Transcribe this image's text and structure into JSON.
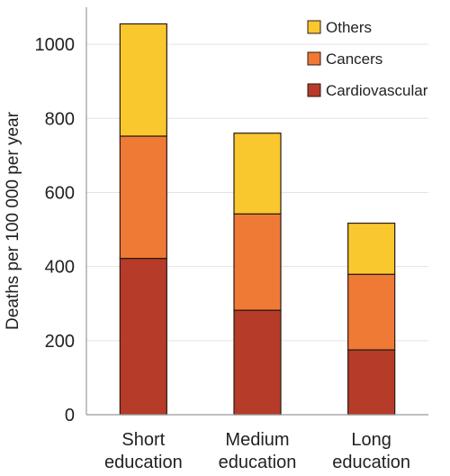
{
  "chart_data": {
    "type": "bar",
    "stacked": true,
    "categories": [
      [
        "Short",
        "education"
      ],
      [
        "Medium",
        "education"
      ],
      [
        "Long",
        "education"
      ]
    ],
    "series": [
      {
        "name": "Cardiovascular",
        "color": "#b63b28",
        "values": [
          422,
          282,
          175
        ]
      },
      {
        "name": "Cancers",
        "color": "#ef7a35",
        "values": [
          330,
          260,
          204
        ]
      },
      {
        "name": "Others",
        "color": "#f9c82e",
        "values": [
          303,
          218,
          138
        ]
      }
    ],
    "ylabel": "Deaths per 100 000 per year",
    "xlabel": "",
    "ylim": [
      0,
      1100
    ],
    "yticks": [
      0,
      200,
      400,
      600,
      800,
      1000
    ],
    "grid": true,
    "legend": {
      "position": "top-right",
      "order": [
        "Others",
        "Cancers",
        "Cardiovascular"
      ]
    }
  }
}
